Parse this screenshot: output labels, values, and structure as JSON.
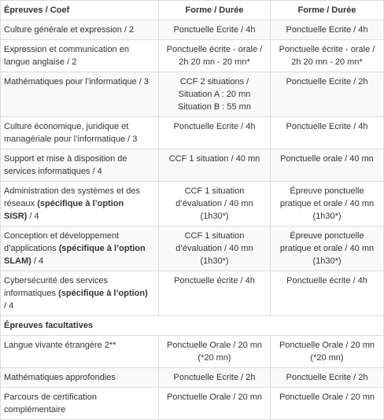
{
  "table": {
    "headers": [
      "Épreuves / Coef",
      "Forme / Durée",
      "Forme / Durée"
    ],
    "rows": [
      {
        "label": [
          "Culture générale et expression / 2"
        ],
        "col2": [
          "Ponctuelle Ecrite / 4h"
        ],
        "col3": [
          "Ponctuelle Ecrite / 4h"
        ]
      },
      {
        "label": [
          "Expression et communication en",
          "langue anglaise / 2"
        ],
        "col2": [
          "Ponctuelle écrite - orale /",
          "2h 20 mn - 20 mn*"
        ],
        "col3": [
          "Ponctuelle écrite - orale /",
          "2h 20 mn - 20 mn*"
        ]
      },
      {
        "label": [
          "Mathématiques pour l’informatique / 3"
        ],
        "col2": [
          "CCF 2 situations /",
          "Situation A : 20 mn",
          "Situation B : 55 mn"
        ],
        "col3": [
          "Ponctuelle Ecrite / 2h"
        ]
      },
      {
        "label": [
          "Culture économique, juridique et",
          "managériale pour l’informatique / 3"
        ],
        "col2": [
          "Ponctuelle Ecrite / 4h"
        ],
        "col3": [
          "Ponctuelle Ecrite / 4h"
        ]
      },
      {
        "label": [
          "Support et mise à disposition de",
          "services informatiques / 4"
        ],
        "col2": [
          "CCF 1 situation / 40 mn"
        ],
        "col3": [
          "Ponctuelle orale / 40 mn"
        ]
      },
      {
        "label_a": "Administration des systèmes et des",
        "label_b": "réseaux ",
        "label_bold_1": "(spécifique à l’option",
        "label_bold_2": "SISR)",
        "label_c": " / 4",
        "col2": [
          "CCF 1 situation",
          "d’évaluation / 40 mn",
          "(1h30*)"
        ],
        "col3": [
          "Épreuve ponctuelle",
          "pratique et orale / 40 mn",
          "(1h30*)"
        ]
      },
      {
        "label_a": "Conception et développement",
        "label_b": "d’applications ",
        "label_bold_1": "(spécifique à l’option",
        "label_bold_2": "SLAM)",
        "label_c": " / 4",
        "col2": [
          "CCF 1 situation",
          "d’évaluation / 40 mn",
          "(1h30*)"
        ],
        "col3": [
          "Épreuve ponctuelle",
          "pratique et orale / 40 mn",
          "(1h30*)"
        ]
      },
      {
        "label_a": "Cybersécurité des services",
        "label_b": "informatiques ",
        "label_bold_1": "(spécifique à l’option)",
        "label_c": "/ 4",
        "col2": [
          "Ponctuelle écrite / 4h"
        ],
        "col3": [
          "Ponctuelle écrite / 4h"
        ]
      }
    ],
    "section": "Épreuves facultatives",
    "optional_rows": [
      {
        "label": [
          "Langue vivante étrangère 2**"
        ],
        "col2": [
          "Ponctuelle Orale / 20 mn",
          "(*20 mn)"
        ],
        "col3": [
          "Ponctuelle Orale / 20 mn",
          "(*20 mn)"
        ]
      },
      {
        "label": [
          "Mathématiques approfondies"
        ],
        "col2": [
          "Ponctuelle Ecrite / 2h"
        ],
        "col3": [
          "Ponctuelle Ecrite / 2h"
        ]
      },
      {
        "label": [
          "Parcours de certification",
          "complémentaire"
        ],
        "col2": [
          "Ponctuelle Orale / 20 mn"
        ],
        "col3": [
          "Ponctuelle Orale / 20 mn"
        ]
      }
    ]
  }
}
